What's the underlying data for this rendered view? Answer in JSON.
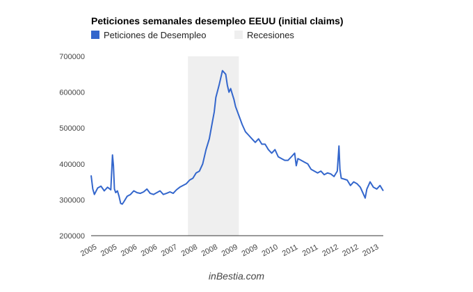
{
  "chart_data": {
    "type": "line",
    "title": "Peticiones semanales desempleo EEUU (initial claims)",
    "legend": [
      {
        "label": "Peticiones de Desempleo",
        "color": "#3366cc",
        "kind": "series"
      },
      {
        "label": "Recesiones",
        "color": "#efefef",
        "kind": "area"
      }
    ],
    "legend_position": "top-left",
    "x_tick_labels": [
      "2005",
      "2005",
      "2006",
      "2006",
      "2007",
      "2008",
      "2008",
      "2009",
      "2009",
      "2010",
      "2011",
      "2011",
      "2012",
      "2012",
      "2013"
    ],
    "xlim": [
      2005.0,
      2013.9
    ],
    "ylim": [
      200000,
      700000
    ],
    "y_ticks": [
      {
        "value": 700000,
        "label": "700000"
      },
      {
        "value": 600000,
        "label": "600000"
      },
      {
        "value": 500000,
        "label": "500000"
      },
      {
        "value": 400000,
        "label": "400000"
      },
      {
        "value": 300000,
        "label": "300000"
      },
      {
        "value": 200000,
        "label": "200000"
      }
    ],
    "grid": false,
    "recessions": [
      [
        2007.95,
        2009.5
      ]
    ],
    "series": [
      {
        "name": "Peticiones de Desempleo",
        "color": "#3366cc",
        "x": [
          2005.0,
          2005.05,
          2005.1,
          2005.2,
          2005.3,
          2005.4,
          2005.5,
          2005.6,
          2005.65,
          2005.68,
          2005.71,
          2005.75,
          2005.8,
          2005.85,
          2005.9,
          2005.95,
          2006.0,
          2006.1,
          2006.2,
          2006.3,
          2006.4,
          2006.5,
          2006.6,
          2006.7,
          2006.8,
          2006.9,
          2007.0,
          2007.1,
          2007.2,
          2007.3,
          2007.4,
          2007.5,
          2007.6,
          2007.7,
          2007.8,
          2007.9,
          2008.0,
          2008.1,
          2008.2,
          2008.3,
          2008.4,
          2008.5,
          2008.6,
          2008.7,
          2008.75,
          2008.8,
          2008.9,
          2009.0,
          2009.1,
          2009.15,
          2009.2,
          2009.25,
          2009.3,
          2009.35,
          2009.4,
          2009.5,
          2009.6,
          2009.7,
          2009.8,
          2009.9,
          2010.0,
          2010.1,
          2010.2,
          2010.3,
          2010.4,
          2010.5,
          2010.6,
          2010.7,
          2010.8,
          2010.9,
          2011.0,
          2011.1,
          2011.2,
          2011.25,
          2011.3,
          2011.4,
          2011.5,
          2011.6,
          2011.7,
          2011.8,
          2011.9,
          2012.0,
          2012.1,
          2012.2,
          2012.3,
          2012.4,
          2012.5,
          2012.55,
          2012.58,
          2012.62,
          2012.7,
          2012.8,
          2012.9,
          2013.0,
          2013.1,
          2013.2,
          2013.3,
          2013.35,
          2013.4,
          2013.5,
          2013.6,
          2013.7,
          2013.8,
          2013.9
        ],
        "values": [
          368000,
          330000,
          315000,
          333000,
          338000,
          325000,
          335000,
          328000,
          425000,
          395000,
          330000,
          320000,
          325000,
          310000,
          290000,
          288000,
          295000,
          310000,
          315000,
          325000,
          320000,
          318000,
          322000,
          330000,
          318000,
          315000,
          320000,
          325000,
          315000,
          318000,
          322000,
          318000,
          328000,
          335000,
          340000,
          345000,
          355000,
          360000,
          375000,
          380000,
          400000,
          440000,
          470000,
          520000,
          545000,
          585000,
          620000,
          660000,
          650000,
          620000,
          600000,
          610000,
          595000,
          580000,
          560000,
          535000,
          510000,
          490000,
          480000,
          470000,
          460000,
          470000,
          455000,
          455000,
          440000,
          430000,
          440000,
          420000,
          415000,
          410000,
          410000,
          420000,
          430000,
          395000,
          415000,
          410000,
          405000,
          400000,
          385000,
          380000,
          375000,
          380000,
          370000,
          375000,
          372000,
          365000,
          380000,
          450000,
          385000,
          360000,
          358000,
          355000,
          340000,
          350000,
          345000,
          335000,
          315000,
          305000,
          330000,
          350000,
          335000,
          330000,
          340000,
          325000
        ]
      }
    ],
    "credit": "inBestia.com"
  }
}
